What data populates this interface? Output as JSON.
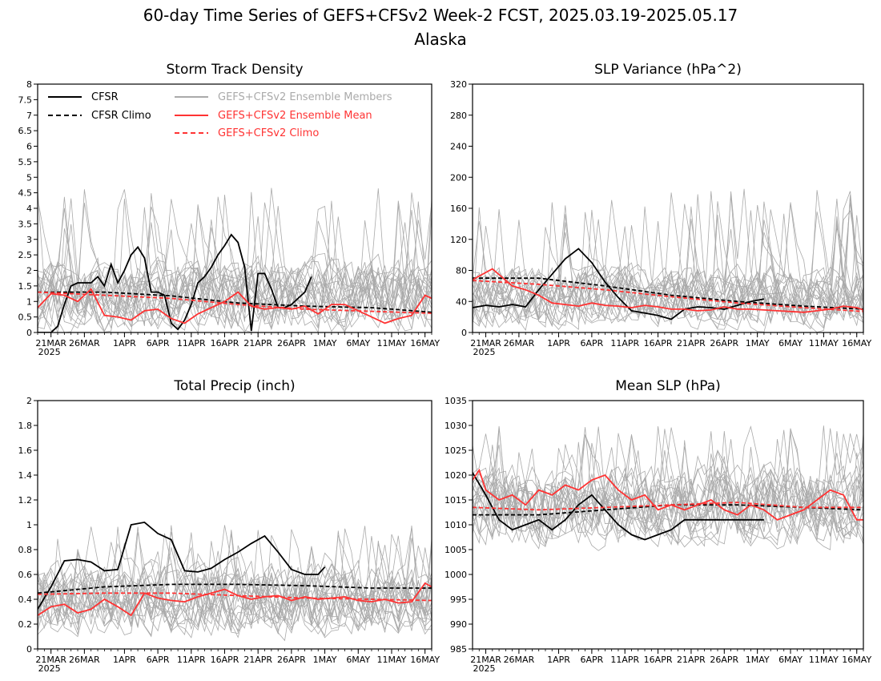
{
  "figure": {
    "title_line1": "60-day Time Series of GEFS+CFSv2 Week-2 FCST, 2025.03.19-2025.05.17",
    "title_line2": "Alaska"
  },
  "colors": {
    "observed": "#000000",
    "members": "#aaaaaa",
    "ensemble_mean": "#ff3333",
    "model_climo": "#ff3333"
  },
  "legend": {
    "placement": "top-left of first panel",
    "items": [
      {
        "label": "CFSR",
        "color": "#000000",
        "style": "solid"
      },
      {
        "label": "CFSR Climo",
        "color": "#000000",
        "style": "dashed"
      },
      {
        "label": "GEFS+CFSv2 Ensemble Members",
        "color": "#aaaaaa",
        "style": "solid"
      },
      {
        "label": "GEFS+CFSv2 Ensemble Mean",
        "color": "#ff3333",
        "style": "solid"
      },
      {
        "label": "GEFS+CFSv2 Climo",
        "color": "#ff3333",
        "style": "dashed"
      }
    ]
  },
  "x_axis": {
    "tick_labels": [
      "21MAR",
      "26MAR",
      "1APR",
      "6APR",
      "11APR",
      "16APR",
      "21APR",
      "26APR",
      "1MAY",
      "6MAY",
      "11MAY",
      "16MAY"
    ],
    "tick_days": [
      2,
      7,
      13,
      18,
      23,
      28,
      33,
      38,
      43,
      48,
      53,
      58
    ],
    "year_label": "2025",
    "days": 60
  },
  "chart_data": [
    {
      "type": "line",
      "title": "Storm Track Density",
      "ylim": [
        0,
        8
      ],
      "yticks": [
        "0",
        "0.5",
        "1",
        "1.5",
        "2",
        "2.5",
        "3",
        "3.5",
        "4",
        "4.5",
        "5",
        "5.5",
        "6",
        "6.5",
        "7",
        "7.5",
        "8"
      ],
      "ytick_values": [
        0,
        0.5,
        1,
        1.5,
        2,
        2.5,
        3,
        3.5,
        4,
        4.5,
        5,
        5.5,
        6,
        6.5,
        7,
        7.5,
        8
      ],
      "member_envelope": {
        "center": 1.2,
        "spread": 1.2,
        "peak": 4.7
      },
      "series": [
        {
          "name": "CFSR",
          "style": "solid",
          "color": "#000000",
          "x": [
            0,
            1,
            2,
            3,
            4,
            5,
            6,
            7,
            8,
            9,
            10,
            11,
            12,
            13,
            14,
            15,
            16,
            17,
            18,
            19,
            20,
            21,
            22,
            23,
            24,
            25,
            26,
            27,
            28,
            29,
            30,
            31,
            32,
            33,
            34,
            35,
            36,
            37,
            38,
            39,
            40,
            41,
            42,
            43
          ],
          "values": [
            0,
            0,
            0,
            0.2,
            0.9,
            1.5,
            1.6,
            1.6,
            1.6,
            1.8,
            1.5,
            2.2,
            1.6,
            2.0,
            2.5,
            2.75,
            2.4,
            1.3,
            1.3,
            1.2,
            0.3,
            0.1,
            0.4,
            0.9,
            1.6,
            1.8,
            2.1,
            2.5,
            2.8,
            3.15,
            2.9,
            2.1,
            0.05,
            1.9,
            1.9,
            1.4,
            0.8,
            0.8,
            0.9,
            1.1,
            1.3,
            1.8,
            null,
            null
          ]
        },
        {
          "name": "CFSR Climo",
          "style": "dashed",
          "color": "#000000",
          "x": [
            0,
            10,
            20,
            30,
            40,
            50,
            55,
            59
          ],
          "values": [
            1.3,
            1.3,
            1.18,
            0.95,
            0.85,
            0.8,
            0.72,
            0.65
          ]
        },
        {
          "name": "GEFS+CFSv2 Ensemble Mean",
          "style": "solid",
          "color": "#ff3333",
          "x": [
            0,
            2,
            4,
            6,
            8,
            10,
            12,
            14,
            16,
            18,
            20,
            22,
            24,
            26,
            28,
            30,
            32,
            34,
            36,
            38,
            40,
            42,
            44,
            46,
            48,
            50,
            52,
            54,
            56,
            58,
            59
          ],
          "values": [
            0.8,
            1.25,
            1.2,
            1.0,
            1.4,
            0.55,
            0.5,
            0.4,
            0.7,
            0.75,
            0.45,
            0.3,
            0.6,
            0.8,
            1.0,
            1.3,
            0.85,
            0.75,
            0.8,
            0.75,
            0.85,
            0.6,
            0.9,
            0.9,
            0.7,
            0.5,
            0.3,
            0.45,
            0.55,
            1.2,
            1.1
          ]
        },
        {
          "name": "GEFS+CFSv2 Climo",
          "style": "dashed",
          "color": "#ff3333",
          "x": [
            0,
            10,
            20,
            30,
            40,
            50,
            59
          ],
          "values": [
            1.3,
            1.2,
            1.1,
            0.9,
            0.75,
            0.68,
            0.62
          ]
        }
      ]
    },
    {
      "type": "line",
      "title": "SLP Variance (hPa^2)",
      "ylim": [
        0,
        320
      ],
      "yticks": [
        "0",
        "40",
        "80",
        "120",
        "160",
        "200",
        "240",
        "280",
        "320"
      ],
      "ytick_values": [
        0,
        40,
        80,
        120,
        160,
        200,
        240,
        280,
        320
      ],
      "member_envelope": {
        "center": 45,
        "spread": 40,
        "peak": 185
      },
      "series": [
        {
          "name": "CFSR",
          "style": "solid",
          "color": "#000000",
          "x": [
            0,
            2,
            4,
            6,
            8,
            10,
            12,
            14,
            16,
            18,
            20,
            22,
            24,
            26,
            28,
            30,
            32,
            34,
            36,
            38,
            40,
            42,
            44
          ],
          "values": [
            32,
            35,
            33,
            36,
            33,
            55,
            75,
            95,
            108,
            90,
            65,
            45,
            28,
            25,
            22,
            17,
            30,
            33,
            32,
            30,
            35,
            40,
            43
          ]
        },
        {
          "name": "CFSR Climo",
          "style": "dashed",
          "color": "#000000",
          "x": [
            0,
            10,
            20,
            30,
            40,
            50,
            59
          ],
          "values": [
            70,
            70,
            60,
            48,
            40,
            34,
            30
          ]
        },
        {
          "name": "GEFS+CFSv2 Ensemble Mean",
          "style": "solid",
          "color": "#ff3333",
          "x": [
            0,
            3,
            6,
            8,
            10,
            12,
            14,
            16,
            18,
            20,
            22,
            24,
            26,
            28,
            30,
            32,
            34,
            36,
            38,
            40,
            42,
            44,
            46,
            48,
            50,
            52,
            54,
            56,
            58,
            59
          ],
          "values": [
            68,
            82,
            60,
            55,
            48,
            38,
            36,
            34,
            38,
            35,
            34,
            32,
            35,
            33,
            30,
            30,
            28,
            29,
            33,
            30,
            30,
            29,
            28,
            27,
            26,
            28,
            30,
            34,
            32,
            29
          ]
        },
        {
          "name": "GEFS+CFSv2 Climo",
          "style": "dashed",
          "color": "#ff3333",
          "x": [
            0,
            10,
            20,
            30,
            40,
            50,
            59
          ],
          "values": [
            67,
            62,
            55,
            46,
            38,
            32,
            27
          ]
        }
      ]
    },
    {
      "type": "line",
      "title": "Total Precip (inch)",
      "ylim": [
        0,
        2
      ],
      "yticks": [
        "0",
        "0.2",
        "0.4",
        "0.6",
        "0.8",
        "1",
        "1.2",
        "1.4",
        "1.6",
        "1.8",
        "2"
      ],
      "ytick_values": [
        0,
        0.2,
        0.4,
        0.6,
        0.8,
        1,
        1.2,
        1.4,
        1.6,
        1.8,
        2
      ],
      "member_envelope": {
        "center": 0.4,
        "spread": 0.3,
        "peak": 1.0
      },
      "series": [
        {
          "name": "CFSR",
          "style": "solid",
          "color": "#000000",
          "x": [
            0,
            2,
            4,
            6,
            8,
            10,
            12,
            14,
            16,
            18,
            20,
            22,
            24,
            26,
            28,
            30,
            32,
            34,
            36,
            38,
            40,
            42,
            43
          ],
          "values": [
            0.32,
            0.5,
            0.71,
            0.72,
            0.7,
            0.63,
            0.64,
            1.0,
            1.02,
            0.93,
            0.88,
            0.63,
            0.62,
            0.65,
            0.72,
            0.78,
            0.85,
            0.91,
            0.78,
            0.64,
            0.6,
            0.6,
            0.66
          ]
        },
        {
          "name": "CFSR Climo",
          "style": "dashed",
          "color": "#000000",
          "x": [
            0,
            10,
            20,
            30,
            40,
            50,
            59
          ],
          "values": [
            0.45,
            0.5,
            0.52,
            0.52,
            0.51,
            0.49,
            0.49
          ]
        },
        {
          "name": "GEFS+CFSv2 Ensemble Mean",
          "style": "solid",
          "color": "#ff3333",
          "x": [
            0,
            2,
            4,
            6,
            8,
            10,
            12,
            14,
            16,
            18,
            20,
            22,
            24,
            26,
            28,
            30,
            32,
            34,
            36,
            38,
            40,
            42,
            44,
            46,
            48,
            50,
            52,
            54,
            56,
            58,
            59
          ],
          "values": [
            0.27,
            0.34,
            0.36,
            0.29,
            0.32,
            0.4,
            0.34,
            0.27,
            0.45,
            0.41,
            0.39,
            0.38,
            0.42,
            0.45,
            0.48,
            0.43,
            0.4,
            0.42,
            0.43,
            0.39,
            0.42,
            0.4,
            0.41,
            0.42,
            0.39,
            0.38,
            0.4,
            0.37,
            0.38,
            0.53,
            0.5
          ]
        },
        {
          "name": "GEFS+CFSv2 Climo",
          "style": "dashed",
          "color": "#ff3333",
          "x": [
            0,
            10,
            20,
            30,
            40,
            50,
            59
          ],
          "values": [
            0.44,
            0.45,
            0.45,
            0.43,
            0.41,
            0.4,
            0.39
          ]
        }
      ]
    },
    {
      "type": "line",
      "title": "Mean SLP (hPa)",
      "ylim": [
        985,
        1035
      ],
      "yticks": [
        "985",
        "990",
        "995",
        "1000",
        "1005",
        "1010",
        "1015",
        "1020",
        "1025",
        "1030",
        "1035"
      ],
      "ytick_values": [
        985,
        990,
        995,
        1000,
        1005,
        1010,
        1015,
        1020,
        1025,
        1030,
        1035
      ],
      "member_envelope": {
        "center": 1014,
        "spread": 8,
        "peak": 1030
      },
      "series": [
        {
          "name": "CFSR",
          "style": "solid",
          "color": "#000000",
          "x": [
            0,
            2,
            4,
            6,
            8,
            10,
            12,
            14,
            16,
            18,
            20,
            22,
            24,
            26,
            28,
            30,
            32,
            34,
            36,
            38,
            40,
            42,
            44
          ],
          "values": [
            1020.5,
            1016,
            1011,
            1009,
            1010,
            1011,
            1009,
            1011,
            1014,
            1016,
            1013,
            1010,
            1008,
            1007,
            1008,
            1009,
            1011,
            1011,
            1011,
            1011,
            1011,
            1011,
            1011
          ]
        },
        {
          "name": "CFSR Climo",
          "style": "dashed",
          "color": "#000000",
          "x": [
            0,
            10,
            20,
            30,
            40,
            50,
            59
          ],
          "values": [
            1012,
            1012,
            1013,
            1014,
            1014,
            1013.5,
            1013
          ]
        },
        {
          "name": "GEFS+CFSv2 Ensemble Mean",
          "style": "solid",
          "color": "#ff3333",
          "x": [
            0,
            1,
            2,
            4,
            6,
            8,
            10,
            12,
            14,
            16,
            18,
            20,
            22,
            24,
            26,
            28,
            30,
            32,
            34,
            36,
            38,
            40,
            42,
            44,
            46,
            48,
            50,
            52,
            54,
            56,
            58,
            59
          ],
          "values": [
            1019,
            1021,
            1017,
            1015,
            1016,
            1014,
            1017,
            1016,
            1018,
            1017,
            1019,
            1020,
            1017,
            1015,
            1016,
            1013,
            1014,
            1013,
            1014,
            1015,
            1013,
            1012,
            1014,
            1013,
            1011,
            1012,
            1013,
            1015,
            1017,
            1016,
            1011,
            1011
          ]
        },
        {
          "name": "GEFS+CFSv2 Climo",
          "style": "dashed",
          "color": "#ff3333",
          "x": [
            0,
            10,
            20,
            30,
            40,
            50,
            59
          ],
          "values": [
            1013.5,
            1013,
            1013.5,
            1014,
            1014.5,
            1013.5,
            1013.5
          ]
        }
      ]
    }
  ]
}
